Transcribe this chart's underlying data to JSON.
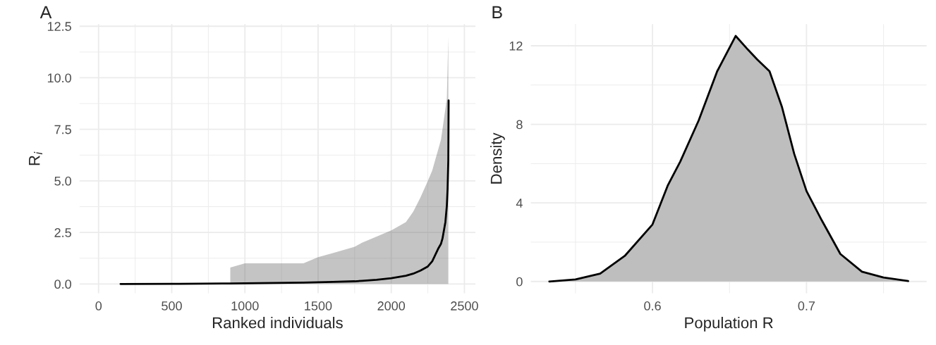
{
  "chart_data": [
    {
      "type": "line",
      "title": "A",
      "xlabel": "Ranked individuals",
      "ylabel": "R$_{i}$",
      "xlim": [
        -130,
        2575
      ],
      "ylim": [
        -0.45,
        12.6
      ],
      "xticks": [
        0,
        500,
        1000,
        1500,
        2000,
        2500
      ],
      "yticks": [
        {
          "value": 0,
          "label": "0.0"
        },
        {
          "value": 2.5,
          "label": "2.5"
        },
        {
          "value": 5,
          "label": "5.0"
        },
        {
          "value": 7.5,
          "label": "7.5"
        },
        {
          "value": 10,
          "label": "10.0"
        },
        {
          "value": 12.5,
          "label": "12.5"
        }
      ],
      "grid": true,
      "marker": "none",
      "line_style": "solid",
      "series": [
        {
          "color": "#000000",
          "x": [
            150,
            500,
            850,
            900,
            1000,
            1200,
            1400,
            1500,
            1600,
            1750,
            1800,
            1900,
            2000,
            2100,
            2150,
            2200,
            2250,
            2280,
            2300,
            2320,
            2340,
            2350,
            2360,
            2370,
            2380,
            2385,
            2390,
            2392
          ],
          "values": [
            0,
            0.005,
            0.02,
            0.025,
            0.03,
            0.05,
            0.07,
            0.08,
            0.1,
            0.13,
            0.15,
            0.2,
            0.28,
            0.4,
            0.5,
            0.65,
            0.85,
            1.1,
            1.4,
            1.7,
            1.95,
            2.2,
            2.6,
            3.0,
            3.8,
            4.6,
            6.0,
            8.9
          ],
          "lower": [
            null,
            null,
            null,
            0,
            0,
            0,
            0,
            0,
            0,
            0,
            0,
            0,
            0,
            0,
            0,
            0,
            0,
            0,
            0,
            0,
            0,
            0,
            0,
            0,
            0,
            0,
            0,
            null
          ],
          "upper": [
            null,
            null,
            null,
            0.8,
            1.0,
            1.0,
            1.0,
            1.3,
            1.5,
            1.8,
            2.0,
            2.3,
            2.6,
            3.0,
            3.5,
            4.2,
            5.0,
            5.5,
            6.0,
            6.5,
            7.0,
            7.5,
            8.0,
            8.5,
            9.0,
            10.5,
            12.0,
            null
          ]
        }
      ]
    },
    {
      "type": "area",
      "title": "B",
      "xlabel": "Population R",
      "ylabel": "Density",
      "xlim": [
        0.521,
        0.778
      ],
      "ylim": [
        -0.6,
        13.1
      ],
      "xticks": [
        0.6,
        0.7
      ],
      "yticks": [
        0,
        4,
        8,
        12
      ],
      "grid": true,
      "line_style": "solid",
      "x": [
        0.533,
        0.55,
        0.566,
        0.582,
        0.6,
        0.61,
        0.618,
        0.63,
        0.642,
        0.654,
        0.662,
        0.668,
        0.676,
        0.684,
        0.692,
        0.7,
        0.71,
        0.722,
        0.736,
        0.75,
        0.766
      ],
      "series": [
        {
          "color": "#bebebe",
          "values": [
            0,
            0.1,
            0.4,
            1.3,
            2.9,
            4.9,
            6.1,
            8.2,
            10.7,
            12.5,
            11.8,
            11.3,
            10.7,
            8.9,
            6.5,
            4.6,
            3.1,
            1.4,
            0.5,
            0.2,
            0.02
          ]
        }
      ]
    }
  ]
}
